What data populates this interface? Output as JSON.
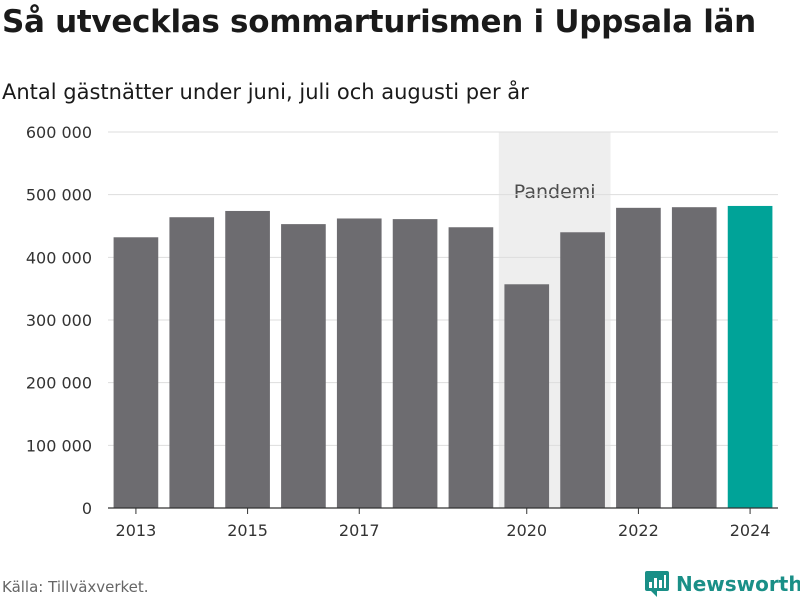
{
  "title": "Så utvecklas sommarturismen i Uppsala län",
  "subtitle": "Antal gästnätter under juni, juli och augusti per år",
  "source": "Källa: Tillväxverket.",
  "brand": "Newsworthy",
  "colors": {
    "bar": "#6d6c70",
    "highlight": "#00a398",
    "band": "#eeeeee",
    "grid": "#dddddd",
    "brand": "#1a8f87"
  },
  "chart_data": {
    "type": "bar",
    "title": "Så utvecklas sommarturismen i Uppsala län",
    "subtitle": "Antal gästnätter under juni, juli och augusti per år",
    "categories": [
      "2013",
      "2014",
      "2015",
      "2016",
      "2017",
      "2018",
      "2019",
      "2020",
      "2021",
      "2022",
      "2023",
      "2024"
    ],
    "values": [
      432000,
      464000,
      474000,
      453000,
      462000,
      461000,
      448000,
      357000,
      440000,
      479000,
      480000,
      482000
    ],
    "highlight_category": "2024",
    "x_tick_labels": [
      "2013",
      "2015",
      "2017",
      "2020",
      "2022",
      "2024"
    ],
    "y_ticks": [
      0,
      100000,
      200000,
      300000,
      400000,
      500000,
      600000
    ],
    "y_tick_labels": [
      "0",
      "100 000",
      "200 000",
      "300 000",
      "400 000",
      "500 000",
      "600 000"
    ],
    "ylim": [
      0,
      600000
    ],
    "grid": true,
    "annotation": {
      "label": "Pandemi",
      "from": "2020",
      "to": "2021"
    },
    "xlabel": "",
    "ylabel": ""
  }
}
